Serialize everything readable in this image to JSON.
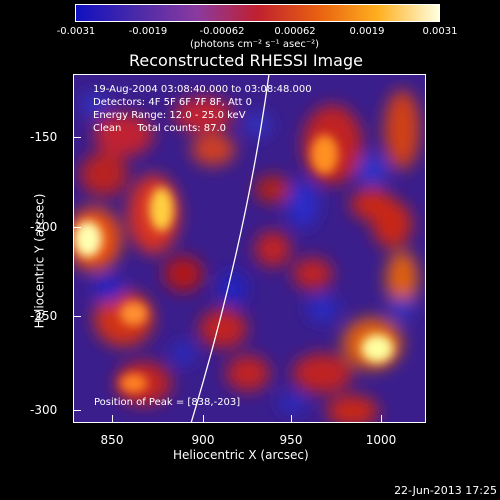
{
  "colorbar": {
    "tick_labels": [
      "-0.0031",
      "-0.0019",
      "-0.00062",
      "0.00062",
      "0.0019",
      "0.0031"
    ],
    "units": "(photons cm⁻² s⁻¹ asec⁻²)",
    "colors": [
      "#1010c0",
      "#4a2aa8",
      "#8a3aa0",
      "#c02030",
      "#e86010",
      "#ffb020",
      "#ffffe0"
    ]
  },
  "title": "Reconstructed RHESSI Image",
  "info": {
    "line1": "19-Aug-2004 03:08:40.000 to 03:08:48.000",
    "line2": "Detectors: 4F 5F 6F 7F 8F, Att 0",
    "line3": "Energy Range: 12.0 - 25.0 keV",
    "line4": "Clean     Total counts: 87.0"
  },
  "peak_text": "Position of Peak = [838,-203]",
  "axes": {
    "xlabel": "Heliocentric X (arcsec)",
    "ylabel": "Heliocentric Y (arcsec)",
    "xticks": [
      "850",
      "900",
      "950",
      "1000"
    ],
    "yticks": [
      "-150",
      "-200",
      "-250",
      "-300"
    ]
  },
  "footer": "22-Jun-2013 17:25"
}
